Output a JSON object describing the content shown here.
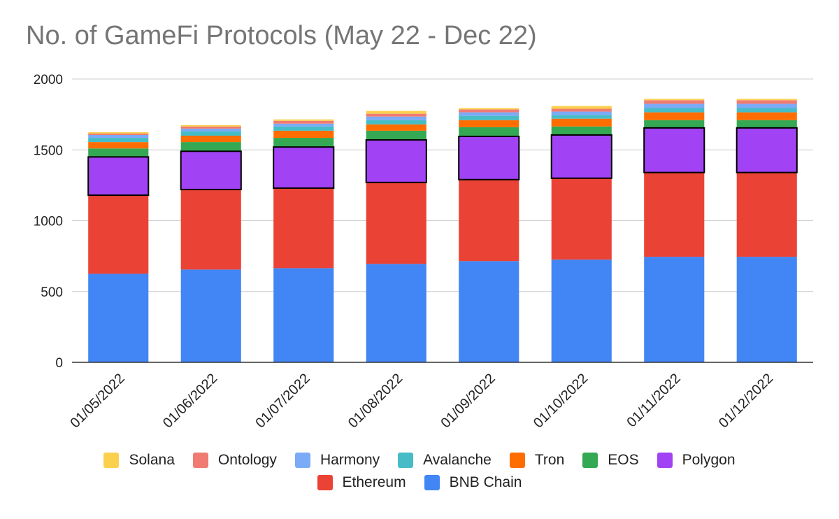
{
  "chart_data": {
    "type": "bar",
    "stacked": true,
    "title": "No. of GameFi Protocols (May 22 - Dec 22)",
    "xlabel": "",
    "ylabel": "",
    "ylim": [
      0,
      2000
    ],
    "yticks": [
      0,
      500,
      1000,
      1500,
      2000
    ],
    "grid": true,
    "legend_position": "bottom",
    "highlighted_series": "Polygon",
    "categories": [
      "01/05/2022",
      "01/06/2022",
      "01/07/2022",
      "01/08/2022",
      "01/09/2022",
      "01/10/2022",
      "01/11/2022",
      "01/12/2022"
    ],
    "series": [
      {
        "name": "BNB Chain",
        "color": "#4285f4",
        "values": [
          625,
          655,
          665,
          695,
          715,
          725,
          745,
          745
        ]
      },
      {
        "name": "Ethereum",
        "color": "#ea4335",
        "values": [
          555,
          565,
          565,
          575,
          575,
          575,
          595,
          595
        ]
      },
      {
        "name": "Polygon",
        "color": "#a142f4",
        "values": [
          270,
          270,
          290,
          300,
          305,
          305,
          315,
          315
        ]
      },
      {
        "name": "EOS",
        "color": "#34a853",
        "values": [
          60,
          65,
          65,
          65,
          65,
          60,
          55,
          55
        ]
      },
      {
        "name": "Tron",
        "color": "#ff6d01",
        "values": [
          45,
          45,
          50,
          45,
          50,
          55,
          55,
          55
        ]
      },
      {
        "name": "Avalanche",
        "color": "#46bdc6",
        "values": [
          30,
          30,
          30,
          30,
          30,
          25,
          30,
          30
        ]
      },
      {
        "name": "Harmony",
        "color": "#7baaf7",
        "values": [
          20,
          20,
          20,
          25,
          25,
          25,
          30,
          30
        ]
      },
      {
        "name": "Ontology",
        "color": "#f07b72",
        "values": [
          10,
          15,
          20,
          20,
          20,
          20,
          25,
          25
        ]
      },
      {
        "name": "Solana",
        "color": "#fcd04f",
        "values": [
          10,
          10,
          10,
          20,
          10,
          20,
          10,
          10
        ]
      }
    ],
    "legend_order": [
      "Solana",
      "Ontology",
      "Harmony",
      "Avalanche",
      "Tron",
      "EOS",
      "Polygon",
      "Ethereum",
      "BNB Chain"
    ]
  }
}
